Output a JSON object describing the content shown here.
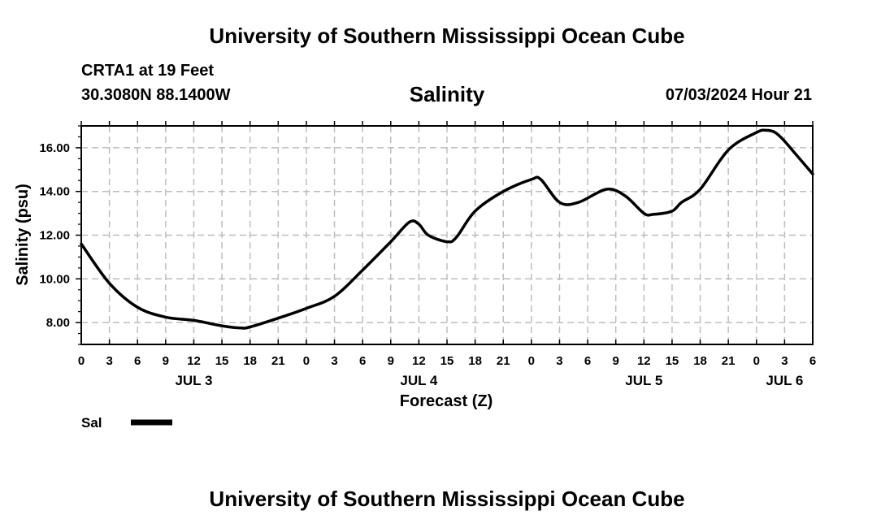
{
  "header": {
    "org_title": "University of Southern Mississippi Ocean Cube",
    "station": "CRTA1 at 19 Feet",
    "coords": "30.3080N  88.1400W",
    "chart_title": "Salinity",
    "datetime": "07/03/2024 Hour 21"
  },
  "footer": {
    "org_title": "University of Southern Mississippi Ocean Cube"
  },
  "chart_data": {
    "type": "line",
    "title": "Salinity",
    "xlabel": "Forecast (Z)",
    "ylabel": "Salinity (psu)",
    "x_unit": "hours since 07/03/2024 00Z",
    "xlim": [
      0,
      78
    ],
    "ylim": [
      7.0,
      17.0
    ],
    "x_ticks": [
      0,
      3,
      6,
      9,
      12,
      15,
      18,
      21,
      24,
      27,
      30,
      33,
      36,
      39,
      42,
      45,
      48,
      51,
      54,
      57,
      60,
      63,
      66,
      69,
      72,
      75,
      78
    ],
    "x_tick_labels": [
      "0",
      "3",
      "6",
      "9",
      "12",
      "15",
      "18",
      "21",
      "0",
      "3",
      "6",
      "9",
      "12",
      "15",
      "18",
      "21",
      "0",
      "3",
      "6",
      "9",
      "12",
      "15",
      "18",
      "21",
      "0",
      "3",
      "6"
    ],
    "y_ticks": [
      8,
      10,
      12,
      14,
      16
    ],
    "y_tick_labels": [
      "8.00",
      "10.00",
      "12.00",
      "14.00",
      "16.00"
    ],
    "y_minor_ticks": [
      7,
      7.5,
      8.5,
      9,
      9.5,
      10.5,
      11,
      11.5,
      12.5,
      13,
      13.5,
      14.5,
      15,
      15.5,
      16.5,
      17
    ],
    "day_labels": [
      {
        "x": 12,
        "label": "JUL 3"
      },
      {
        "x": 36,
        "label": "JUL 4"
      },
      {
        "x": 60,
        "label": "JUL 5"
      },
      {
        "x": 75,
        "label": "JUL 6"
      }
    ],
    "grid": true,
    "legend_position": "bottom-left",
    "series": [
      {
        "name": "Sal",
        "color": "#000000",
        "x": [
          0,
          3,
          6,
          9,
          12,
          15,
          17,
          18,
          21,
          24,
          27,
          30,
          33,
          35,
          36,
          37,
          39,
          40,
          42,
          45,
          48,
          49,
          51,
          53,
          56,
          58,
          60,
          61,
          63,
          64,
          66,
          69,
          72,
          73,
          74,
          75,
          76,
          78
        ],
        "y": [
          11.6,
          9.8,
          8.7,
          8.25,
          8.1,
          7.85,
          7.75,
          7.8,
          8.2,
          8.65,
          9.2,
          10.4,
          11.7,
          12.6,
          12.5,
          12.0,
          11.7,
          11.9,
          13.1,
          14.0,
          14.55,
          14.55,
          13.5,
          13.5,
          14.1,
          13.8,
          13.0,
          12.95,
          13.1,
          13.5,
          14.1,
          15.9,
          16.7,
          16.8,
          16.7,
          16.3,
          15.8,
          14.8
        ]
      }
    ]
  }
}
